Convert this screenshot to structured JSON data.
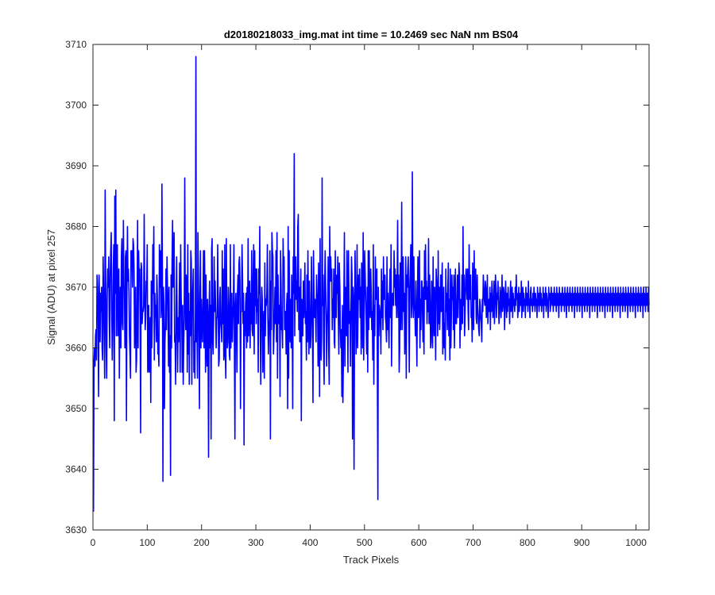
{
  "chart_data": {
    "type": "line",
    "title": "d20180218033_img.mat int time = 10.2469 sec  NaN nm BS04",
    "xlabel": "Track Pixels",
    "ylabel": "Signal (ADU) at pixel 257",
    "xlim": [
      0,
      1024
    ],
    "ylim": [
      3630,
      3710
    ],
    "x_ticks": [
      0,
      100,
      200,
      300,
      400,
      500,
      600,
      700,
      800,
      900,
      1000
    ],
    "y_ticks": [
      3630,
      3640,
      3650,
      3660,
      3670,
      3680,
      3690,
      3700,
      3710
    ],
    "grid": false,
    "legend": "none",
    "series": [
      {
        "color": "#0000ff",
        "x_start": 1,
        "x_step": 1,
        "sampled_values": [
          3633,
          3658,
          3660,
          3657,
          3662,
          3663,
          3658,
          3672,
          3670,
          3665,
          3652,
          3672,
          3668,
          3661,
          3669,
          3666,
          3670,
          3660,
          3658,
          3675,
          3669,
          3663,
          3655,
          3686,
          3672,
          3660,
          3655,
          3668,
          3673,
          3670,
          3675,
          3665,
          3660,
          3672,
          3676,
          3679,
          3666,
          3658,
          3664,
          3673,
          3677,
          3648,
          3685,
          3669,
          3686,
          3662,
          3674,
          3677,
          3662,
          3671,
          3673,
          3655,
          3667,
          3670,
          3660,
          3675,
          3678,
          3664,
          3663,
          3681,
          3670,
          3670,
          3660,
          3675,
          3676,
          3648,
          3669,
          3680,
          3671,
          3673,
          3669,
          3662,
          3659,
          3655,
          3676,
          3675,
          3676,
          3670,
          3678,
          3677,
          3673,
          3660,
          3666,
          3670,
          3656,
          3658,
          3668,
          3681,
          3660,
          3676,
          3672,
          3673,
          3665,
          3646,
          3674,
          3673,
          3664,
          3666,
          3666,
          3667,
          3682,
          3669,
          3663,
          3665,
          3671,
          3670,
          3677,
          3656,
          3657,
          3667,
          3656,
          3660,
          3665,
          3651,
          3671,
          3660,
          3665,
          3677,
          3669,
          3680,
          3658,
          3669,
          3665,
          3667,
          3661,
          3672,
          3668,
          3659,
          3660,
          3657,
          3677,
          3670,
          3676,
          3665,
          3667,
          3687,
          3672,
          3638,
          3670,
          3667,
          3650,
          3661,
          3664,
          3673,
          3663,
          3675,
          3670,
          3667,
          3657,
          3670,
          3656,
          3662,
          3639,
          3672,
          3660,
          3674,
          3681,
          3670,
          3672,
          3679,
          3661,
          3662,
          3654,
          3666,
          3675,
          3664,
          3656,
          3665,
          3661,
          3668,
          3674,
          3656,
          3677,
          3668,
          3666,
          3656,
          3667,
          3654,
          3660,
          3665,
          3688,
          3669,
          3663,
          3672,
          3670,
          3656,
          3677,
          3659,
          3669,
          3654,
          3666,
          3662,
          3676,
          3674,
          3654,
          3667,
          3670,
          3673,
          3656,
          3661,
          3655,
          3666,
          3708,
          3661,
          3667,
          3655,
          3679,
          3672,
          3662,
          3650,
          3668,
          3676,
          3660,
          3668,
          3663,
          3661,
          3667,
          3676,
          3660,
          3676,
          3669,
          3656,
          3672,
          3661,
          3657,
          3668,
          3663,
          3642,
          3666,
          3671,
          3660,
          3667,
          3645,
          3676,
          3678,
          3661,
          3659,
          3665,
          3675,
          3666,
          3671,
          3666,
          3660,
          3665,
          3665,
          3677,
          3667,
          3657,
          3658,
          3668,
          3670,
          3664,
          3663,
          3661,
          3676,
          3664,
          3673,
          3658,
          3659,
          3677,
          3659,
          3655,
          3678,
          3667,
          3660,
          3661,
          3670,
          3667,
          3659,
          3658,
          3677,
          3660,
          3665,
          3669,
          3661,
          3665,
          3667,
          3677,
          3660,
          3645,
          3667,
          3669,
          3663,
          3656,
          3669,
          3672,
          3664,
          3674,
          3675,
          3671,
          3650,
          3666,
          3666,
          3677,
          3672,
          3664,
          3669,
          3644,
          3666,
          3662,
          3667,
          3669,
          3660,
          3670,
          3661,
          3678,
          3662,
          3667,
          3671,
          3660,
          3669,
          3664,
          3676,
          3663,
          3662,
          3672,
          3677,
          3659,
          3676,
          3667,
          3673,
          3664,
          3673,
          3666,
          3668,
          3656,
          3673,
          3669,
          3680,
          3662,
          3654,
          3665,
          3670,
          3668,
          3656,
          3664,
          3666,
          3655,
          3674,
          3662,
          3668,
          3667,
          3669,
          3677,
          3665,
          3659,
          3663,
          3665,
          3676,
          3645,
          3671,
          3663,
          3679,
          3676,
          3675,
          3659,
          3662,
          3665,
          3670,
          3664,
          3676,
          3661,
          3679,
          3655,
          3672,
          3667,
          3664,
          3667,
          3652,
          3676,
          3671,
          3663,
          3663,
          3660,
          3678,
          3672,
          3675,
          3663,
          3664,
          3666,
          3659,
          3667,
          3669,
          3650,
          3680,
          3655,
          3676,
          3665,
          3661,
          3668,
          3660,
          3672,
          3666,
          3650,
          3675,
          3669,
          3692,
          3662,
          3672,
          3675,
          3668,
          3671,
          3666,
          3680,
          3682,
          3663,
          3670,
          3661,
          3668,
          3673,
          3648,
          3668,
          3664,
          3662,
          3671,
          3665,
          3668,
          3674,
          3664,
          3666,
          3658,
          3672,
          3661,
          3676,
          3666,
          3659,
          3671,
          3665,
          3660,
          3662,
          3675,
          3667,
          3663,
          3651,
          3676,
          3669,
          3665,
          3668,
          3666,
          3661,
          3672,
          3669,
          3668,
          3657,
          3674,
          3667,
          3652,
          3678,
          3661,
          3658,
          3662,
          3688,
          3667,
          3672,
          3660,
          3654,
          3670,
          3676,
          3670,
          3665,
          3657,
          3664,
          3667,
          3675,
          3660,
          3654,
          3680,
          3671,
          3675,
          3671,
          3673,
          3663,
          3668,
          3665,
          3673,
          3661,
          3660,
          3676,
          3666,
          3665,
          3672,
          3669,
          3675,
          3665,
          3659,
          3674,
          3670,
          3663,
          3660,
          3663,
          3652,
          3667,
          3651,
          3658,
          3669,
          3679,
          3657,
          3670,
          3667,
          3662,
          3676,
          3668,
          3656,
          3676,
          3669,
          3664,
          3666,
          3657,
          3667,
          3675,
          3672,
          3645,
          3670,
          3668,
          3640,
          3666,
          3676,
          3669,
          3659,
          3665,
          3677,
          3660,
          3666,
          3672,
          3668,
          3673,
          3665,
          3670,
          3659,
          3674,
          3669,
          3660,
          3679,
          3658,
          3667,
          3676,
          3672,
          3668,
          3664,
          3659,
          3670,
          3656,
          3676,
          3663,
          3676,
          3666,
          3665,
          3673,
          3669,
          3663,
          3666,
          3658,
          3677,
          3654,
          3667,
          3662,
          3675,
          3668,
          3668,
          3673,
          3656,
          3635,
          3670,
          3662,
          3667,
          3666,
          3664,
          3659,
          3673,
          3665,
          3671,
          3663,
          3675,
          3668,
          3668,
          3672,
          3665,
          3664,
          3661,
          3675,
          3663,
          3669,
          3664,
          3660,
          3669,
          3673,
          3665,
          3677,
          3657,
          3666,
          3669,
          3669,
          3667,
          3676,
          3670,
          3673,
          3667,
          3672,
          3665,
          3670,
          3681,
          3665,
          3672,
          3656,
          3660,
          3674,
          3663,
          3668,
          3684,
          3663,
          3669,
          3675,
          3666,
          3669,
          3659,
          3665,
          3675,
          3655,
          3672,
          3670,
          3673,
          3675,
          3665,
          3656,
          3670,
          3673,
          3677,
          3665,
          3667,
          3689,
          3670,
          3665,
          3675,
          3667,
          3666,
          3662,
          3671,
          3664,
          3657,
          3668,
          3675,
          3665,
          3672,
          3676,
          3660,
          3668,
          3663,
          3671,
          3671,
          3666,
          3661,
          3670,
          3659,
          3676,
          3668,
          3677,
          3668,
          3671,
          3664,
          3670,
          3666,
          3678,
          3664,
          3672,
          3668,
          3660,
          3661,
          3671,
          3666,
          3660,
          3675,
          3664,
          3662,
          3670,
          3667,
          3658,
          3673,
          3671,
          3669,
          3662,
          3676,
          3664,
          3670,
          3663,
          3667,
          3672,
          3666,
          3670,
          3674,
          3659,
          3662,
          3670,
          3660,
          3664,
          3658,
          3673,
          3666,
          3669,
          3663,
          3670,
          3674,
          3662,
          3668,
          3658,
          3673,
          3660,
          3665,
          3672,
          3668,
          3670,
          3663,
          3672,
          3660,
          3667,
          3673,
          3664,
          3664,
          3667,
          3672,
          3665,
          3669,
          3674,
          3672,
          3660,
          3668,
          3663,
          3666,
          3672,
          3664,
          3680,
          3667,
          3672,
          3662,
          3665,
          3671,
          3673,
          3670,
          3668,
          3673,
          3666,
          3663,
          3677,
          3670,
          3668,
          3672,
          3665,
          3666,
          3661,
          3674,
          3667,
          3663,
          3676,
          3668,
          3669,
          3673,
          3665,
          3664,
          3672,
          3667,
          3665,
          3663,
          3662,
          3668,
          3667,
          3665,
          3664,
          3661,
          3668,
          3666,
          3672,
          3670,
          3668,
          3667,
          3671,
          3670,
          3665,
          3666,
          3672,
          3664,
          3667,
          3668,
          3666,
          3670,
          3663,
          3669,
          3666,
          3671,
          3668,
          3665,
          3667,
          3671,
          3664,
          3667,
          3672,
          3670,
          3665,
          3669,
          3668,
          3671,
          3667,
          3664,
          3666,
          3670,
          3669,
          3665,
          3668,
          3672,
          3666,
          3667,
          3670,
          3669,
          3663,
          3667,
          3671,
          3668,
          3665,
          3669,
          3666,
          3670,
          3667,
          3668,
          3664,
          3669,
          3671,
          3666,
          3668,
          3670,
          3665,
          3669,
          3667,
          3668,
          3666,
          3670,
          3667,
          3672,
          3668,
          3669,
          3665,
          3667,
          3670,
          3666,
          3668,
          3669,
          3667,
          3671,
          3665,
          3668,
          3670,
          3666,
          3669,
          3667,
          3668,
          3665,
          3670,
          3667,
          3669,
          3668,
          3666,
          3671,
          3667,
          3668,
          3665,
          3669,
          3670,
          3667,
          3668,
          3666,
          3669,
          3667,
          3670,
          3668,
          3666,
          3669,
          3667,
          3668,
          3665,
          3670,
          3667,
          3669,
          3666,
          3668,
          3670,
          3667,
          3669,
          3666,
          3668,
          3667,
          3670,
          3665,
          3669,
          3668,
          3667,
          3670,
          3666,
          3669,
          3668,
          3667,
          3665,
          3670,
          3668,
          3669,
          3666,
          3667,
          3670,
          3668,
          3667,
          3669,
          3666,
          3668,
          3670,
          3667,
          3669,
          3668,
          3666,
          3670,
          3667,
          3669,
          3668,
          3665,
          3670,
          3667,
          3668,
          3669,
          3666,
          3668,
          3670,
          3667,
          3669,
          3668,
          3666,
          3670,
          3667,
          3669,
          3665,
          3668,
          3670,
          3667,
          3669,
          3666,
          3668,
          3670,
          3667,
          3669,
          3668,
          3666,
          3670,
          3667,
          3668,
          3669,
          3665,
          3670,
          3667,
          3669,
          3668,
          3666,
          3670,
          3667,
          3668,
          3669,
          3666,
          3670,
          3667,
          3669,
          3668,
          3665,
          3670,
          3667,
          3669,
          3668,
          3666,
          3670,
          3667,
          3668,
          3669,
          3666,
          3670,
          3667,
          3669,
          3668,
          3665,
          3670,
          3667,
          3668,
          3669,
          3666,
          3670,
          3667,
          3669,
          3668,
          3666,
          3670,
          3667,
          3668,
          3669,
          3665,
          3670,
          3667,
          3669,
          3668,
          3666,
          3670,
          3667,
          3668,
          3669,
          3666,
          3670,
          3667,
          3669,
          3668,
          3665,
          3670,
          3667,
          3668,
          3669,
          3666,
          3670,
          3667,
          3669,
          3668,
          3666,
          3670,
          3667,
          3668,
          3669,
          3665,
          3670,
          3667,
          3669,
          3668,
          3666,
          3670,
          3667,
          3668,
          3669,
          3666,
          3670,
          3667,
          3669,
          3668,
          3665,
          3670,
          3667,
          3668,
          3669,
          3666,
          3670,
          3667,
          3669,
          3668,
          3666,
          3670,
          3667,
          3668,
          3669,
          3665,
          3670,
          3667,
          3669,
          3668,
          3666,
          3670,
          3667,
          3668,
          3669,
          3666,
          3670,
          3667,
          3669,
          3668,
          3665,
          3670,
          3667,
          3668,
          3669,
          3666,
          3670,
          3667,
          3669,
          3668,
          3666,
          3670,
          3667,
          3668,
          3669,
          3665,
          3670,
          3667,
          3669,
          3668,
          3666,
          3670,
          3667,
          3668,
          3669,
          3666,
          3670,
          3667
        ]
      }
    ]
  }
}
